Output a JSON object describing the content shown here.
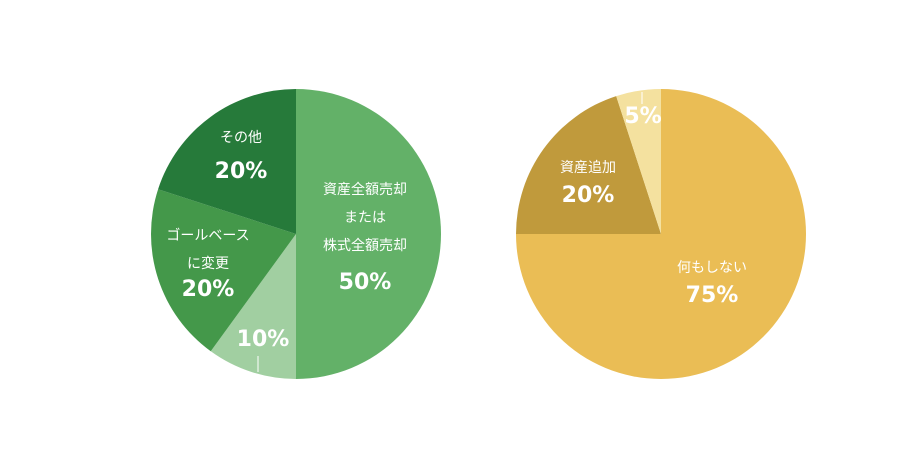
{
  "chart_data": [
    {
      "type": "pie",
      "categories": [
        [
          "資産全額売却",
          "または",
          "株式全額売却"
        ],
        null,
        [
          "ゴールベース",
          "に変更"
        ],
        [
          "その他"
        ]
      ],
      "values": [
        50,
        10,
        20,
        20
      ],
      "value_labels": [
        "50%",
        "10%",
        "20%",
        "20%"
      ],
      "colors": [
        "#63b168",
        "#a1cfa1",
        "#44984a",
        "#267a3a"
      ]
    },
    {
      "type": "pie",
      "categories": [
        [
          "何もしない"
        ],
        [
          "資産追加"
        ],
        null
      ],
      "values": [
        75,
        20,
        5
      ],
      "value_labels": [
        "75%",
        "20%",
        "5%"
      ],
      "colors": [
        "#eabd55",
        "#c09a3c",
        "#f4e19f"
      ]
    }
  ]
}
